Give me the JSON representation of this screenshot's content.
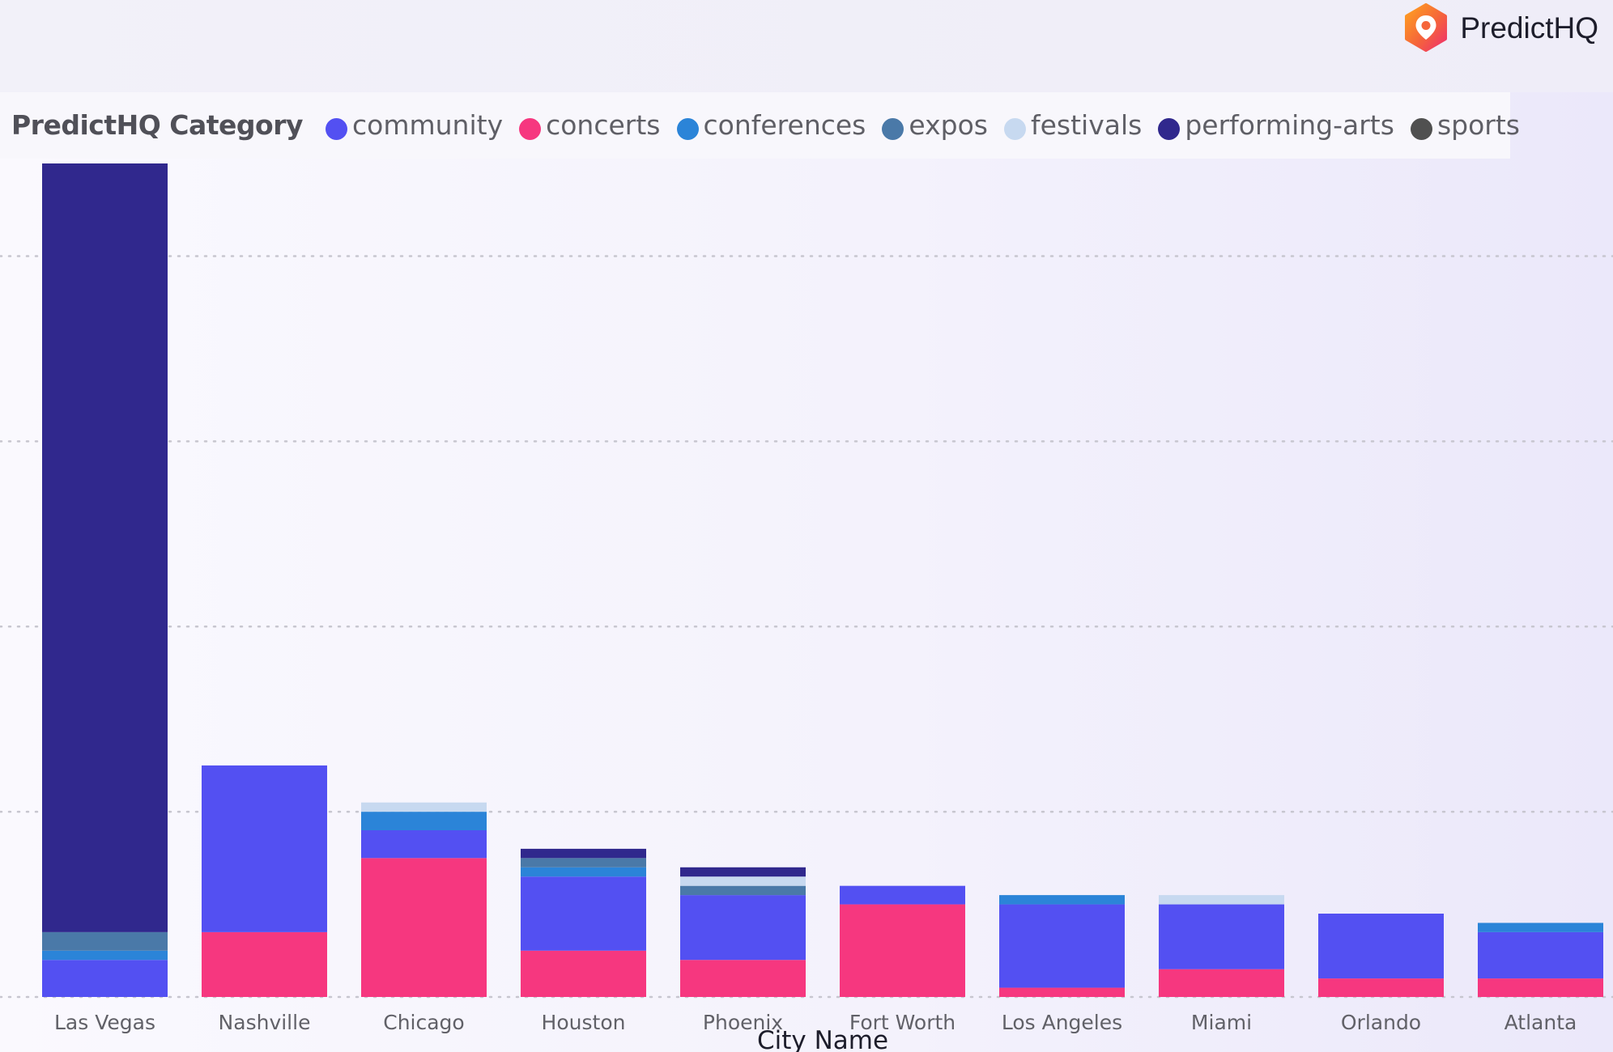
{
  "brand": {
    "name": "PredictHQ",
    "accent": "#f5653a"
  },
  "chart_data": {
    "type": "bar",
    "stacked": true,
    "legend_title": "PredictHQ Category",
    "legend_position": "top-left",
    "xlabel": "City Name",
    "ylabel": "",
    "grid": true,
    "y_axis_labels_visible": false,
    "categories": [
      "Las Vegas",
      "Nashville",
      "Chicago",
      "Houston",
      "Phoenix",
      "Fort Worth",
      "Los Angeles",
      "Miami",
      "Orlando",
      "Atlanta"
    ],
    "ylim": [
      0,
      4.5
    ],
    "series": [
      {
        "name": "community",
        "color": "#5350f2",
        "values": [
          0.2,
          0.9,
          0.15,
          0.4,
          0.35,
          0.1,
          0.45,
          0.35,
          0.35,
          0.25
        ]
      },
      {
        "name": "concerts",
        "color": "#f6377f",
        "values": [
          0,
          0.35,
          0.75,
          0.25,
          0.2,
          0.5,
          0.05,
          0.15,
          0.1,
          0.1
        ]
      },
      {
        "name": "conferences",
        "color": "#2b84d8",
        "values": [
          0.05,
          0,
          0.1,
          0.05,
          0,
          0,
          0.05,
          0,
          0,
          0.05
        ]
      },
      {
        "name": "expos",
        "color": "#4a79a8",
        "values": [
          0.1,
          0,
          0,
          0.05,
          0.05,
          0,
          0,
          0,
          0,
          0
        ]
      },
      {
        "name": "festivals",
        "color": "#c7d9f0",
        "values": [
          0,
          0,
          0.05,
          0,
          0.05,
          0,
          0,
          0.05,
          0,
          0
        ]
      },
      {
        "name": "performing-arts",
        "color": "#30288d",
        "values": [
          4.15,
          0,
          0,
          0.05,
          0.05,
          0,
          0,
          0,
          0,
          0
        ]
      },
      {
        "name": "sports",
        "color": "#505050",
        "values": [
          0,
          0,
          0,
          0,
          0,
          0,
          0,
          0,
          0,
          0
        ]
      }
    ]
  }
}
